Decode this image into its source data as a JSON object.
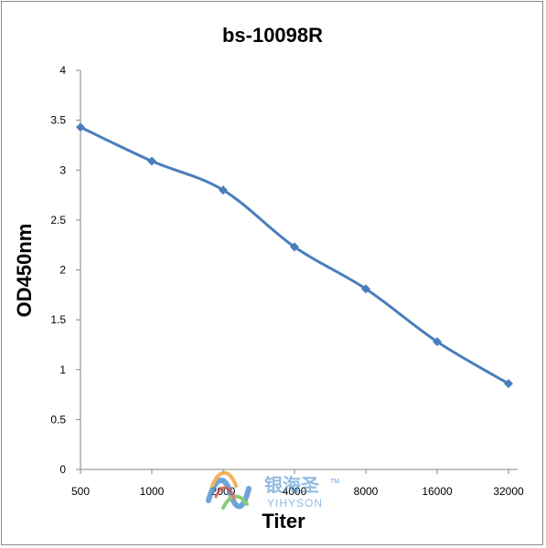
{
  "chart_data": {
    "type": "line",
    "title": "bs-10098R",
    "xlabel": "Titer",
    "ylabel": "OD450nm",
    "categories": [
      "500",
      "1000",
      "2000",
      "4000",
      "8000",
      "16000",
      "32000"
    ],
    "series": [
      {
        "values": [
          3.43,
          3.09,
          2.8,
          2.23,
          1.81,
          1.28,
          0.86
        ]
      }
    ],
    "ylim": [
      0,
      4
    ],
    "yticks": [
      "0",
      "0.5",
      "1",
      "1.5",
      "2",
      "2.5",
      "3",
      "3.5",
      "4"
    ],
    "grid": false,
    "legend": "none",
    "line_color": "#4a7ebb",
    "marker": "diamond"
  },
  "watermark": {
    "text_cn": "银海圣",
    "text_en": "YIHYSON",
    "tm": "TM",
    "colors": [
      "#4a8fd0",
      "#f0a030",
      "#6cbf4f",
      "#d9534f"
    ]
  }
}
